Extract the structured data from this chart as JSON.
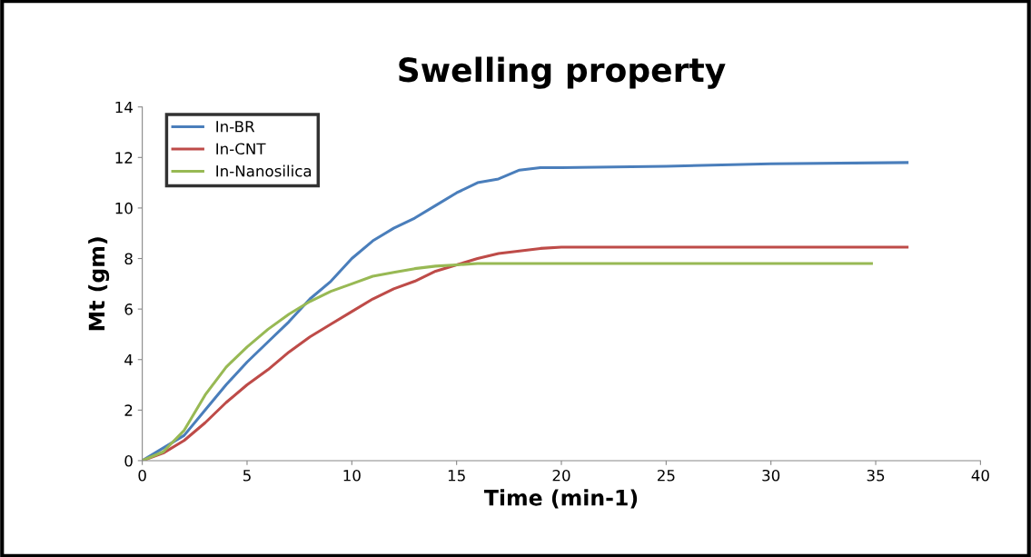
{
  "chart_data": {
    "type": "line",
    "title": "Swelling property",
    "xlabel": "Time (min-1)",
    "ylabel": "Mt (gm)",
    "xlim": [
      0,
      40
    ],
    "xticks": [
      0,
      5,
      10,
      15,
      20,
      25,
      30,
      35,
      40
    ],
    "ylim": [
      0,
      14
    ],
    "yticks": [
      0,
      2,
      4,
      6,
      8,
      10,
      12,
      14
    ],
    "grid": false,
    "legend": "top left",
    "marker": "none",
    "line_style": "solid",
    "series": [
      {
        "name": "In-BR",
        "color": "#4a7ebb",
        "x": [
          0,
          2,
          3,
          4,
          5,
          6,
          7,
          8,
          9,
          10,
          11,
          12,
          13,
          14,
          15,
          16,
          17,
          18,
          19,
          20,
          25,
          30,
          36.5
        ],
        "values": [
          0,
          1.0,
          2.0,
          3.0,
          3.9,
          4.7,
          5.5,
          6.4,
          7.1,
          8.0,
          8.7,
          9.2,
          9.6,
          10.1,
          10.6,
          11.0,
          11.15,
          11.5,
          11.6,
          11.6,
          11.65,
          11.75,
          11.8
        ]
      },
      {
        "name": "In-CNT",
        "color": "#be4b48",
        "x": [
          0,
          1,
          2,
          3,
          4,
          5,
          6,
          7,
          8,
          9,
          10,
          11,
          12,
          13,
          14,
          15,
          16,
          17,
          18,
          19,
          20,
          25,
          30,
          36.5
        ],
        "values": [
          0,
          0.3,
          0.8,
          1.5,
          2.3,
          3.0,
          3.6,
          4.3,
          4.9,
          5.4,
          5.9,
          6.4,
          6.8,
          7.1,
          7.5,
          7.75,
          8.0,
          8.2,
          8.3,
          8.4,
          8.45,
          8.45,
          8.45,
          8.45
        ]
      },
      {
        "name": "In-Nanosilica",
        "color": "#98b954",
        "x": [
          0,
          1,
          2,
          3,
          4,
          5,
          6,
          7,
          8,
          9,
          10,
          11,
          12,
          13,
          14,
          15,
          16,
          20,
          25,
          30,
          34.8
        ],
        "values": [
          0,
          0.35,
          1.2,
          2.6,
          3.7,
          4.5,
          5.2,
          5.8,
          6.3,
          6.7,
          7.0,
          7.3,
          7.45,
          7.6,
          7.7,
          7.75,
          7.8,
          7.8,
          7.8,
          7.8,
          7.8
        ]
      }
    ]
  }
}
